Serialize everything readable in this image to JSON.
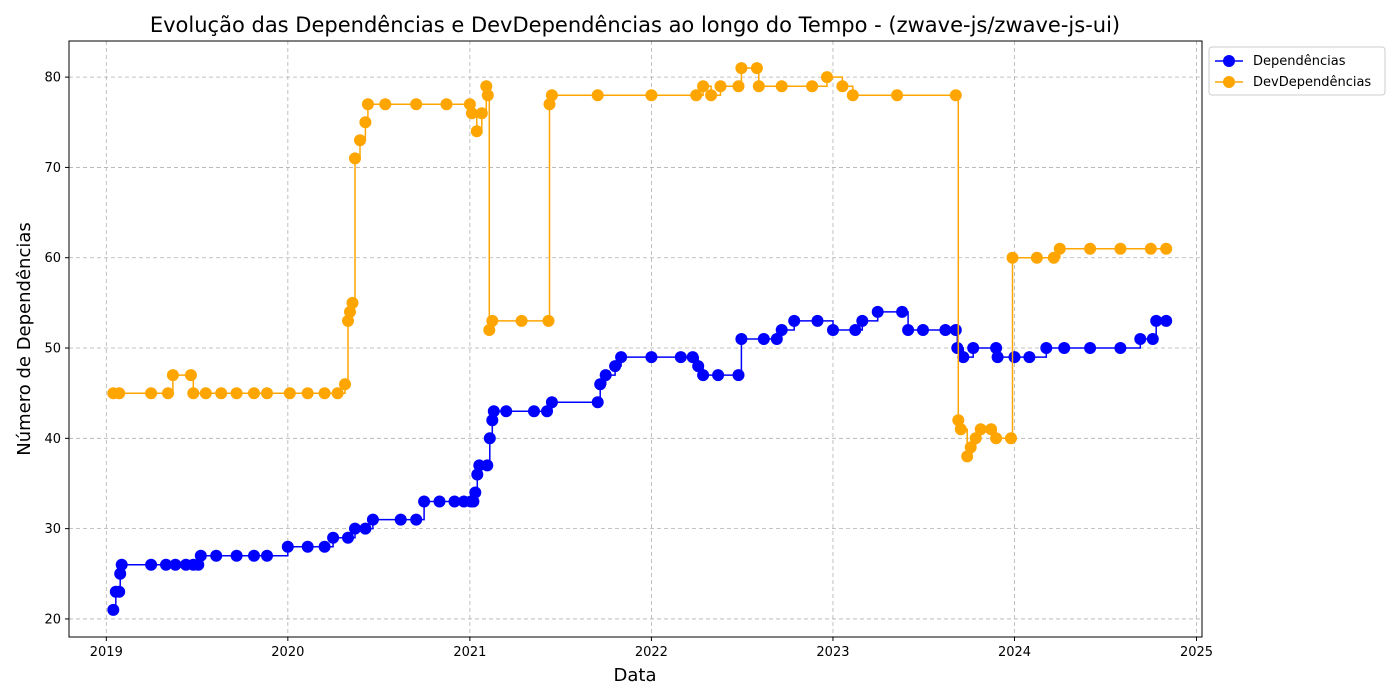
{
  "chart_data": {
    "type": "line",
    "title": "Evolução das Dependências e DevDependências ao longo do Tempo - (zwave-js/zwave-js-ui)",
    "xlabel": "Data",
    "ylabel": "Número de Dependências",
    "x_ticks": [
      "2019",
      "2020",
      "2021",
      "2022",
      "2023",
      "2024",
      "2025"
    ],
    "y_ticks": [
      20,
      30,
      40,
      50,
      60,
      70,
      80
    ],
    "xlim": [
      "2018-10-18",
      "2025-01-12"
    ],
    "ylim": [
      18,
      84
    ],
    "grid": true,
    "legend_position": "outside-top-right",
    "series": [
      {
        "name": "Dependências",
        "color": "#0000ff",
        "points": [
          [
            "2019-01-15",
            21
          ],
          [
            "2019-01-20",
            23
          ],
          [
            "2019-01-27",
            23
          ],
          [
            "2019-01-29",
            25
          ],
          [
            "2019-02-01",
            26
          ],
          [
            "2019-04-01",
            26
          ],
          [
            "2019-05-01",
            26
          ],
          [
            "2019-05-20",
            26
          ],
          [
            "2019-06-10",
            26
          ],
          [
            "2019-06-25",
            26
          ],
          [
            "2019-07-05",
            26
          ],
          [
            "2019-07-10",
            27
          ],
          [
            "2019-08-10",
            27
          ],
          [
            "2019-09-20",
            27
          ],
          [
            "2019-10-25",
            27
          ],
          [
            "2019-11-20",
            27
          ],
          [
            "2020-01-01",
            28
          ],
          [
            "2020-02-10",
            28
          ],
          [
            "2020-03-15",
            28
          ],
          [
            "2020-04-01",
            29
          ],
          [
            "2020-05-01",
            29
          ],
          [
            "2020-05-15",
            30
          ],
          [
            "2020-06-05",
            30
          ],
          [
            "2020-06-20",
            31
          ],
          [
            "2020-08-15",
            31
          ],
          [
            "2020-09-15",
            31
          ],
          [
            "2020-10-01",
            33
          ],
          [
            "2020-11-01",
            33
          ],
          [
            "2020-12-01",
            33
          ],
          [
            "2020-12-20",
            33
          ],
          [
            "2021-01-03",
            33
          ],
          [
            "2021-01-08",
            33
          ],
          [
            "2021-01-12",
            34
          ],
          [
            "2021-01-16",
            36
          ],
          [
            "2021-01-20",
            37
          ],
          [
            "2021-02-05",
            37
          ],
          [
            "2021-02-10",
            40
          ],
          [
            "2021-02-15",
            42
          ],
          [
            "2021-02-18",
            43
          ],
          [
            "2021-03-15",
            43
          ],
          [
            "2021-05-10",
            43
          ],
          [
            "2021-06-05",
            43
          ],
          [
            "2021-06-15",
            44
          ],
          [
            "2021-09-15",
            44
          ],
          [
            "2021-09-20",
            46
          ],
          [
            "2021-10-01",
            47
          ],
          [
            "2021-10-20",
            48
          ],
          [
            "2021-11-01",
            49
          ],
          [
            "2022-01-01",
            49
          ],
          [
            "2022-03-01",
            49
          ],
          [
            "2022-03-25",
            49
          ],
          [
            "2022-04-05",
            48
          ],
          [
            "2022-04-15",
            47
          ],
          [
            "2022-05-15",
            47
          ],
          [
            "2022-06-25",
            47
          ],
          [
            "2022-07-01",
            51
          ],
          [
            "2022-08-15",
            51
          ],
          [
            "2022-09-10",
            51
          ],
          [
            "2022-09-20",
            52
          ],
          [
            "2022-10-15",
            53
          ],
          [
            "2022-12-01",
            53
          ],
          [
            "2023-01-01",
            52
          ],
          [
            "2023-02-15",
            52
          ],
          [
            "2023-03-01",
            53
          ],
          [
            "2023-04-01",
            54
          ],
          [
            "2023-05-20",
            54
          ],
          [
            "2023-06-01",
            52
          ],
          [
            "2023-07-01",
            52
          ],
          [
            "2023-08-15",
            52
          ],
          [
            "2023-09-05",
            52
          ],
          [
            "2023-09-08",
            50
          ],
          [
            "2023-09-20",
            49
          ],
          [
            "2023-10-10",
            50
          ],
          [
            "2023-11-25",
            50
          ],
          [
            "2023-11-28",
            49
          ],
          [
            "2024-01-01",
            49
          ],
          [
            "2024-01-31",
            49
          ],
          [
            "2024-03-05",
            50
          ],
          [
            "2024-04-10",
            50
          ],
          [
            "2024-06-01",
            50
          ],
          [
            "2024-08-01",
            50
          ],
          [
            "2024-09-10",
            51
          ],
          [
            "2024-10-05",
            51
          ],
          [
            "2024-10-12",
            53
          ],
          [
            "2024-11-01",
            53
          ]
        ]
      },
      {
        "name": "DevDependências",
        "color": "#ffa500",
        "points": [
          [
            "2019-01-15",
            45
          ],
          [
            "2019-01-27",
            45
          ],
          [
            "2019-04-01",
            45
          ],
          [
            "2019-05-05",
            45
          ],
          [
            "2019-05-15",
            47
          ],
          [
            "2019-06-20",
            47
          ],
          [
            "2019-06-25",
            45
          ],
          [
            "2019-07-20",
            45
          ],
          [
            "2019-08-20",
            45
          ],
          [
            "2019-09-20",
            45
          ],
          [
            "2019-10-25",
            45
          ],
          [
            "2019-11-20",
            45
          ],
          [
            "2020-01-05",
            45
          ],
          [
            "2020-02-10",
            45
          ],
          [
            "2020-03-15",
            45
          ],
          [
            "2020-04-10",
            45
          ],
          [
            "2020-04-25",
            46
          ],
          [
            "2020-05-01",
            53
          ],
          [
            "2020-05-05",
            54
          ],
          [
            "2020-05-10",
            55
          ],
          [
            "2020-05-15",
            71
          ],
          [
            "2020-05-25",
            73
          ],
          [
            "2020-06-05",
            75
          ],
          [
            "2020-06-10",
            77
          ],
          [
            "2020-07-15",
            77
          ],
          [
            "2020-09-15",
            77
          ],
          [
            "2020-11-15",
            77
          ],
          [
            "2021-01-01",
            77
          ],
          [
            "2021-01-05",
            76
          ],
          [
            "2021-01-15",
            74
          ],
          [
            "2021-01-25",
            76
          ],
          [
            "2021-02-03",
            79
          ],
          [
            "2021-02-06",
            78
          ],
          [
            "2021-02-09",
            52
          ],
          [
            "2021-02-15",
            53
          ],
          [
            "2021-04-15",
            53
          ],
          [
            "2021-06-08",
            53
          ],
          [
            "2021-06-10",
            77
          ],
          [
            "2021-06-15",
            78
          ],
          [
            "2021-09-15",
            78
          ],
          [
            "2022-01-01",
            78
          ],
          [
            "2022-04-01",
            78
          ],
          [
            "2022-04-15",
            79
          ],
          [
            "2022-05-01",
            78
          ],
          [
            "2022-05-20",
            79
          ],
          [
            "2022-06-25",
            79
          ],
          [
            "2022-07-01",
            81
          ],
          [
            "2022-08-01",
            81
          ],
          [
            "2022-08-05",
            79
          ],
          [
            "2022-09-20",
            79
          ],
          [
            "2022-11-20",
            79
          ],
          [
            "2022-12-20",
            80
          ],
          [
            "2023-01-20",
            79
          ],
          [
            "2023-02-10",
            78
          ],
          [
            "2023-05-10",
            78
          ],
          [
            "2023-09-05",
            78
          ],
          [
            "2023-09-10",
            42
          ],
          [
            "2023-09-15",
            41
          ],
          [
            "2023-09-28",
            38
          ],
          [
            "2023-10-05",
            39
          ],
          [
            "2023-10-15",
            40
          ],
          [
            "2023-10-25",
            41
          ],
          [
            "2023-11-15",
            41
          ],
          [
            "2023-11-25",
            40
          ],
          [
            "2023-12-25",
            40
          ],
          [
            "2023-12-28",
            60
          ],
          [
            "2024-02-15",
            60
          ],
          [
            "2024-03-20",
            60
          ],
          [
            "2024-04-01",
            61
          ],
          [
            "2024-06-01",
            61
          ],
          [
            "2024-08-01",
            61
          ],
          [
            "2024-10-01",
            61
          ],
          [
            "2024-11-01",
            61
          ]
        ]
      }
    ]
  }
}
